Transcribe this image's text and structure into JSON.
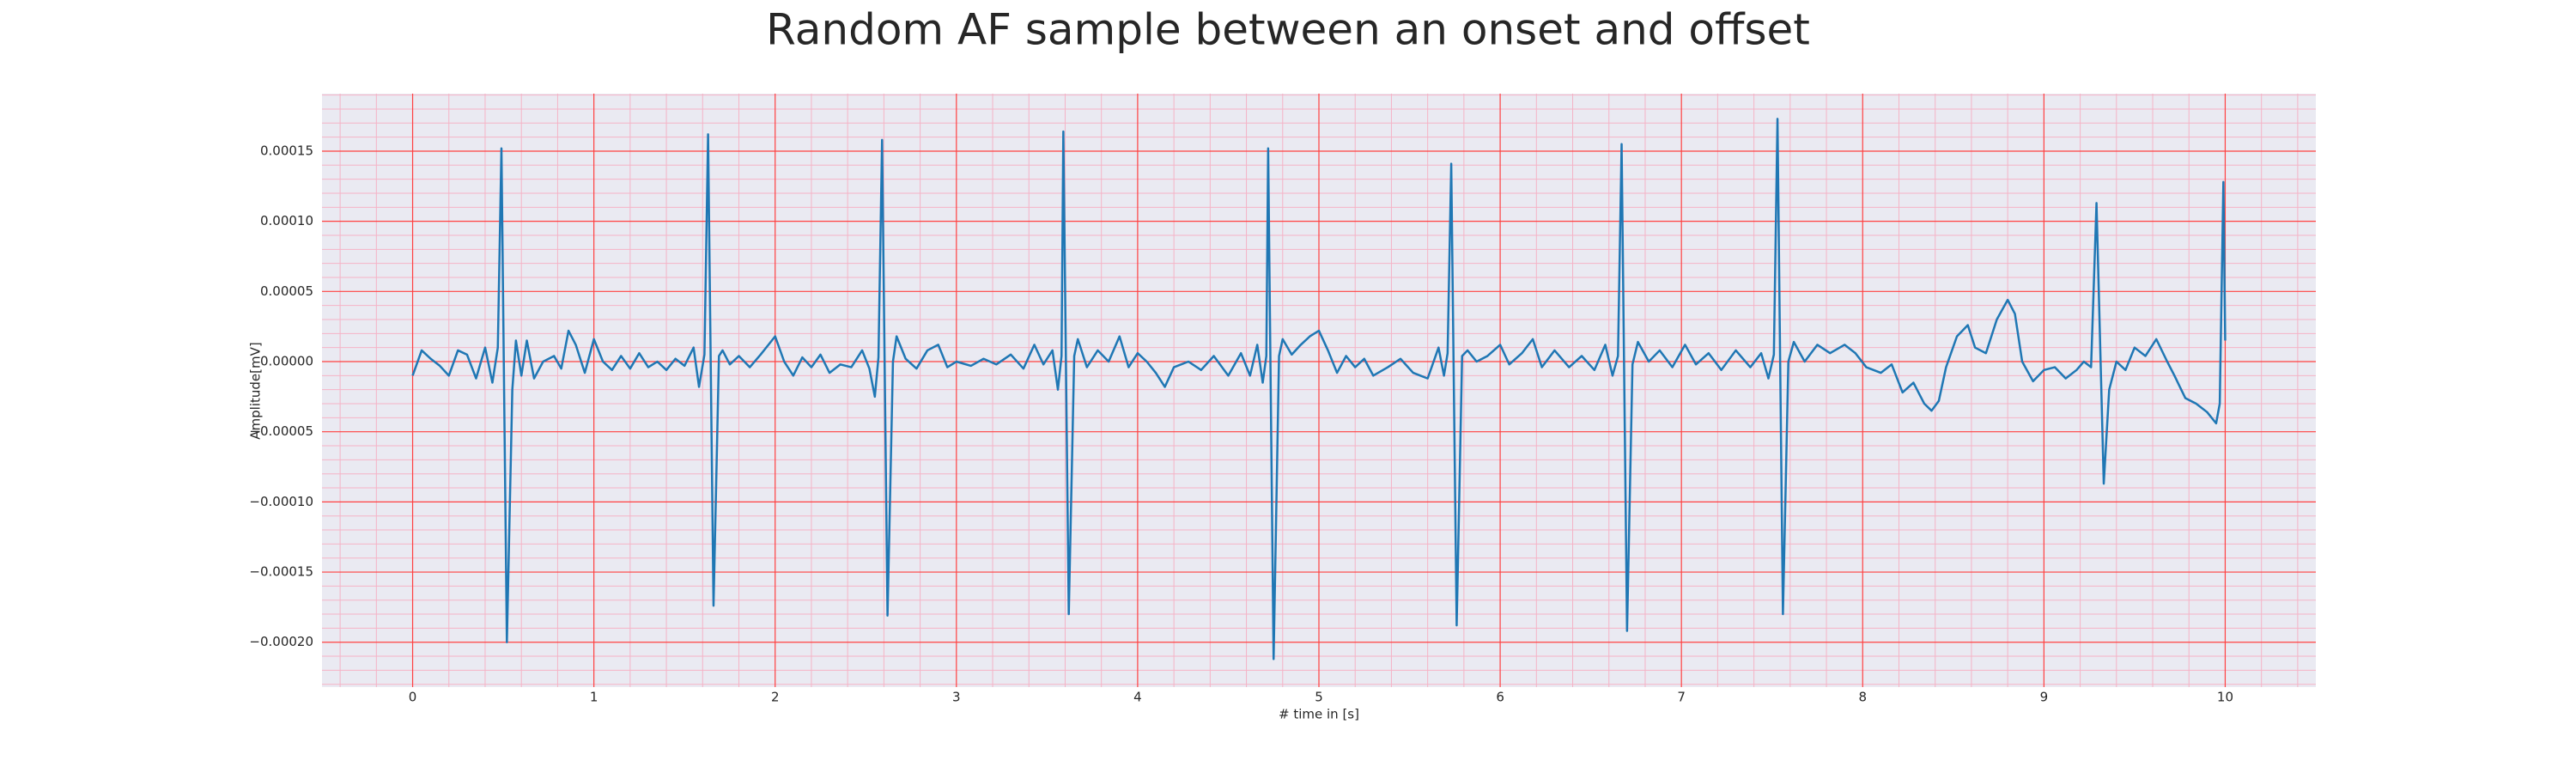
{
  "chart_data": {
    "type": "line",
    "title": "Random AF sample between an onset and offset",
    "x_label": "# time in [s]",
    "y_label": "Amplitude[mV]",
    "xlim": [
      -0.5,
      10.5
    ],
    "ylim": [
      -0.000232,
      0.000191
    ],
    "xticks": [
      0,
      1,
      2,
      3,
      4,
      5,
      6,
      7,
      8,
      9,
      10
    ],
    "yticks": [
      {
        "value": -0.0002,
        "label": "−0.00020"
      },
      {
        "value": -0.00015,
        "label": "−0.00015"
      },
      {
        "value": -0.0001,
        "label": "−0.00010"
      },
      {
        "value": -5e-05,
        "label": "−0.00005"
      },
      {
        "value": 0,
        "label": "0.00000"
      },
      {
        "value": 5e-05,
        "label": "0.00005"
      },
      {
        "value": 0.0001,
        "label": "0.00010"
      },
      {
        "value": 0.00015,
        "label": "0.00015"
      }
    ],
    "grid": true,
    "grid_color": "#ff4040",
    "minor_grid": true,
    "minor_grid_color": "#f5b3c6",
    "background": "#eaeaf2",
    "x": [
      0,
      0.05,
      0.1,
      0.15,
      0.2,
      0.25,
      0.3,
      0.35,
      0.4,
      0.44,
      0.47,
      0.49,
      0.52,
      0.55,
      0.57,
      0.6,
      0.63,
      0.67,
      0.72,
      0.78,
      0.82,
      0.86,
      0.9,
      0.95,
      1.0,
      1.05,
      1.1,
      1.15,
      1.2,
      1.25,
      1.3,
      1.35,
      1.4,
      1.45,
      1.5,
      1.55,
      1.58,
      1.61,
      1.63,
      1.66,
      1.69,
      1.71,
      1.75,
      1.8,
      1.86,
      1.92,
      2.0,
      2.05,
      2.1,
      2.15,
      2.2,
      2.25,
      2.3,
      2.36,
      2.42,
      2.48,
      2.52,
      2.55,
      2.57,
      2.59,
      2.62,
      2.65,
      2.67,
      2.72,
      2.78,
      2.84,
      2.9,
      2.95,
      3.0,
      3.08,
      3.15,
      3.22,
      3.3,
      3.37,
      3.43,
      3.48,
      3.53,
      3.56,
      3.58,
      3.59,
      3.62,
      3.65,
      3.67,
      3.72,
      3.78,
      3.84,
      3.9,
      3.95,
      4.0,
      4.05,
      4.1,
      4.15,
      4.2,
      4.28,
      4.35,
      4.42,
      4.5,
      4.57,
      4.62,
      4.66,
      4.69,
      4.71,
      4.72,
      4.75,
      4.78,
      4.8,
      4.85,
      4.9,
      4.95,
      5.0,
      5.05,
      5.1,
      5.15,
      5.2,
      5.25,
      5.3,
      5.38,
      5.45,
      5.52,
      5.6,
      5.66,
      5.69,
      5.71,
      5.73,
      5.76,
      5.79,
      5.82,
      5.87,
      5.93,
      6.0,
      6.05,
      6.12,
      6.18,
      6.23,
      6.3,
      6.38,
      6.45,
      6.52,
      6.58,
      6.62,
      6.65,
      6.67,
      6.7,
      6.73,
      6.76,
      6.82,
      6.88,
      6.95,
      7.02,
      7.08,
      7.15,
      7.22,
      7.3,
      7.38,
      7.44,
      7.48,
      7.51,
      7.53,
      7.56,
      7.59,
      7.62,
      7.68,
      7.75,
      7.82,
      7.9,
      7.96,
      8.02,
      8.1,
      8.16,
      8.22,
      8.28,
      8.34,
      8.38,
      8.42,
      8.46,
      8.52,
      8.58,
      8.62,
      8.68,
      8.74,
      8.8,
      8.84,
      8.88,
      8.94,
      9.0,
      9.06,
      9.12,
      9.18,
      9.22,
      9.26,
      9.29,
      9.33,
      9.36,
      9.4,
      9.45,
      9.5,
      9.56,
      9.62,
      9.68,
      9.72,
      9.78,
      9.84,
      9.9,
      9.95,
      9.97,
      9.99,
      10.0
    ],
    "series": [
      {
        "color": "#1f77b4",
        "values": [
          -1e-05,
          8e-06,
          2e-06,
          -3e-06,
          -1e-05,
          8e-06,
          5e-06,
          -1.2e-05,
          1e-05,
          -1.5e-05,
          1e-05,
          0.000152,
          -0.0002,
          -2e-05,
          1.5e-05,
          -1e-05,
          1.5e-05,
          -1.2e-05,
          0,
          4e-06,
          -5e-06,
          2.2e-05,
          1.2e-05,
          -8e-06,
          1.6e-05,
          0,
          -6e-06,
          4e-06,
          -5e-06,
          6e-06,
          -4e-06,
          0,
          -6e-06,
          2e-06,
          -3e-06,
          1e-05,
          -1.8e-05,
          5e-06,
          0.000162,
          -0.000174,
          4e-06,
          8e-06,
          -2e-06,
          4e-06,
          -4e-06,
          5e-06,
          1.8e-05,
          0,
          -1e-05,
          3e-06,
          -4e-06,
          5e-06,
          -8e-06,
          -2e-06,
          -4e-06,
          8e-06,
          -5e-06,
          -2.5e-05,
          3e-06,
          0.000158,
          -0.000181,
          0,
          1.8e-05,
          2e-06,
          -5e-06,
          8e-06,
          1.2e-05,
          -4e-06,
          0,
          -3e-06,
          2e-06,
          -2e-06,
          5e-06,
          -5e-06,
          1.2e-05,
          -2e-06,
          8e-06,
          -2e-05,
          4e-06,
          0.000164,
          -0.00018,
          4e-06,
          1.6e-05,
          -4e-06,
          8e-06,
          0,
          1.8e-05,
          -4e-06,
          6e-06,
          0,
          -8e-06,
          -1.8e-05,
          -4e-06,
          0,
          -6e-06,
          4e-06,
          -1e-05,
          6e-06,
          -1e-05,
          1.2e-05,
          -1.5e-05,
          4e-06,
          0.000152,
          -0.000212,
          4e-06,
          1.6e-05,
          5e-06,
          1.2e-05,
          1.8e-05,
          2.2e-05,
          8e-06,
          -8e-06,
          4e-06,
          -4e-06,
          2e-06,
          -1e-05,
          -4e-06,
          2e-06,
          -8e-06,
          -1.2e-05,
          1e-05,
          -1e-05,
          6e-06,
          0.000141,
          -0.000188,
          4e-06,
          8e-06,
          0,
          4e-06,
          1.2e-05,
          -2e-06,
          6e-06,
          1.6e-05,
          -4e-06,
          8e-06,
          -4e-06,
          4e-06,
          -6e-06,
          1.2e-05,
          -1e-05,
          4e-06,
          0.000155,
          -0.000192,
          -2e-06,
          1.4e-05,
          0,
          8e-06,
          -4e-06,
          1.2e-05,
          -2e-06,
          6e-06,
          -6e-06,
          8e-06,
          -4e-06,
          6e-06,
          -1.2e-05,
          5e-06,
          0.000173,
          -0.00018,
          0,
          1.4e-05,
          0,
          1.2e-05,
          6e-06,
          1.2e-05,
          6e-06,
          -4e-06,
          -8e-06,
          -2e-06,
          -2.2e-05,
          -1.5e-05,
          -3e-05,
          -3.5e-05,
          -2.8e-05,
          -4e-06,
          1.8e-05,
          2.6e-05,
          1e-05,
          6e-06,
          3e-05,
          4.4e-05,
          3.4e-05,
          0,
          -1.4e-05,
          -6e-06,
          -4e-06,
          -1.2e-05,
          -6e-06,
          0,
          -4e-06,
          0.000113,
          -8.7e-05,
          -2e-05,
          0,
          -6e-06,
          1e-05,
          4e-06,
          1.6e-05,
          0,
          -1e-05,
          -2.6e-05,
          -3e-05,
          -3.6e-05,
          -4.4e-05,
          -3e-05,
          0.000128,
          1.5e-05
        ]
      }
    ]
  }
}
